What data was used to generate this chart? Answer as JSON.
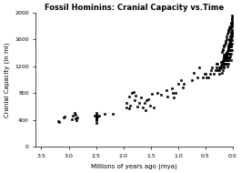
{
  "title": "Fossil Hominins: Cranial Capacity vs.Time",
  "xlabel": "Millions of years ago (mya)",
  "ylabel": "Cranial Capacity (in ml)",
  "xlim": [
    3.6,
    0
  ],
  "ylim": [
    0,
    2000
  ],
  "xticks": [
    3.5,
    3.0,
    2.5,
    2.0,
    1.5,
    1.0,
    0.5,
    0.0
  ],
  "yticks": [
    0,
    400,
    800,
    1200,
    1600,
    2000
  ],
  "bg_color": "#ffffff",
  "marker_color": "black",
  "points": [
    [
      3.18,
      375
    ],
    [
      3.2,
      380
    ],
    [
      3.1,
      430
    ],
    [
      3.08,
      445
    ],
    [
      2.95,
      410
    ],
    [
      2.92,
      460
    ],
    [
      2.9,
      500
    ],
    [
      2.88,
      480
    ],
    [
      2.85,
      435
    ],
    [
      2.87,
      420
    ],
    [
      2.86,
      400
    ],
    [
      2.5,
      450
    ],
    [
      2.5,
      420
    ],
    [
      2.48,
      455
    ],
    [
      2.52,
      460
    ],
    [
      2.5,
      480
    ],
    [
      2.5,
      505
    ],
    [
      2.5,
      390
    ],
    [
      2.5,
      350
    ],
    [
      2.5,
      410
    ],
    [
      2.5,
      430
    ],
    [
      2.45,
      460
    ],
    [
      2.35,
      490
    ],
    [
      2.2,
      490
    ],
    [
      1.95,
      590
    ],
    [
      1.95,
      660
    ],
    [
      1.9,
      750
    ],
    [
      1.9,
      570
    ],
    [
      1.88,
      620
    ],
    [
      1.85,
      800
    ],
    [
      1.82,
      820
    ],
    [
      1.8,
      700
    ],
    [
      1.78,
      760
    ],
    [
      1.75,
      600
    ],
    [
      1.72,
      650
    ],
    [
      1.68,
      740
    ],
    [
      1.65,
      590
    ],
    [
      1.62,
      660
    ],
    [
      1.6,
      550
    ],
    [
      1.58,
      690
    ],
    [
      1.55,
      710
    ],
    [
      1.52,
      610
    ],
    [
      1.48,
      790
    ],
    [
      1.45,
      590
    ],
    [
      1.38,
      800
    ],
    [
      1.32,
      775
    ],
    [
      1.22,
      840
    ],
    [
      1.2,
      750
    ],
    [
      1.12,
      870
    ],
    [
      1.1,
      800
    ],
    [
      1.08,
      730
    ],
    [
      1.05,
      810
    ],
    [
      1.0,
      940
    ],
    [
      0.95,
      990
    ],
    [
      0.92,
      890
    ],
    [
      0.9,
      940
    ],
    [
      0.75,
      990
    ],
    [
      0.72,
      1100
    ],
    [
      0.65,
      1040
    ],
    [
      0.62,
      1190
    ],
    [
      0.55,
      1040
    ],
    [
      0.52,
      1090
    ],
    [
      0.5,
      1090
    ],
    [
      0.48,
      1040
    ],
    [
      0.45,
      1040
    ],
    [
      0.42,
      1090
    ],
    [
      0.4,
      1140
    ],
    [
      0.38,
      1190
    ],
    [
      0.35,
      1090
    ],
    [
      0.32,
      1140
    ],
    [
      0.3,
      1190
    ],
    [
      0.28,
      1240
    ],
    [
      0.25,
      1090
    ],
    [
      0.22,
      1190
    ],
    [
      0.2,
      1240
    ],
    [
      0.18,
      1290
    ],
    [
      0.17,
      1340
    ],
    [
      0.16,
      1190
    ],
    [
      0.15,
      1240
    ],
    [
      0.14,
      1290
    ],
    [
      0.13,
      1240
    ],
    [
      0.12,
      1340
    ],
    [
      0.11,
      1390
    ],
    [
      0.1,
      1200
    ],
    [
      0.09,
      1240
    ],
    [
      0.08,
      1290
    ],
    [
      0.07,
      1340
    ],
    [
      0.3,
      1240
    ],
    [
      0.28,
      1150
    ],
    [
      0.25,
      1190
    ],
    [
      0.2,
      1100
    ],
    [
      0.18,
      1150
    ],
    [
      0.16,
      1200
    ],
    [
      0.14,
      1240
    ],
    [
      0.12,
      1290
    ],
    [
      0.1,
      1340
    ],
    [
      0.08,
      1390
    ],
    [
      0.06,
      1440
    ],
    [
      0.05,
      1350
    ],
    [
      0.04,
      1290
    ],
    [
      0.03,
      1390
    ],
    [
      0.02,
      1440
    ],
    [
      0.04,
      1490
    ],
    [
      0.03,
      1540
    ],
    [
      0.02,
      1590
    ],
    [
      0.01,
      1640
    ],
    [
      0.02,
      1540
    ],
    [
      0.03,
      1440
    ],
    [
      0.04,
      1490
    ],
    [
      0.05,
      1390
    ],
    [
      0.06,
      1340
    ],
    [
      0.07,
      1440
    ],
    [
      0.08,
      1390
    ],
    [
      0.09,
      1290
    ],
    [
      0.1,
      1340
    ],
    [
      0.11,
      1240
    ],
    [
      0.12,
      1390
    ],
    [
      0.13,
      1290
    ],
    [
      0.14,
      1390
    ],
    [
      0.15,
      1240
    ],
    [
      0.16,
      1290
    ],
    [
      0.02,
      1690
    ],
    [
      0.03,
      1640
    ],
    [
      0.04,
      1590
    ],
    [
      0.05,
      1570
    ],
    [
      0.06,
      1490
    ],
    [
      0.07,
      1540
    ],
    [
      0.08,
      1510
    ],
    [
      0.09,
      1470
    ],
    [
      0.1,
      1410
    ],
    [
      0.11,
      1370
    ],
    [
      0.12,
      1350
    ],
    [
      0.13,
      1330
    ],
    [
      0.14,
      1310
    ],
    [
      0.15,
      1350
    ],
    [
      0.16,
      1330
    ],
    [
      0.17,
      1370
    ],
    [
      0.18,
      1270
    ],
    [
      0.19,
      1250
    ],
    [
      0.2,
      1230
    ],
    [
      0.21,
      1270
    ],
    [
      0.22,
      1210
    ],
    [
      0.23,
      1190
    ],
    [
      0.24,
      1170
    ],
    [
      0.25,
      1150
    ],
    [
      0.01,
      1790
    ],
    [
      0.02,
      1740
    ],
    [
      0.03,
      1710
    ],
    [
      0.04,
      1670
    ],
    [
      0.05,
      1650
    ],
    [
      0.06,
      1610
    ],
    [
      0.07,
      1590
    ],
    [
      0.01,
      1840
    ],
    [
      0.02,
      1810
    ],
    [
      0.03,
      1770
    ],
    [
      0.0,
      1850
    ],
    [
      0.01,
      1900
    ],
    [
      0.02,
      1880
    ],
    [
      0.0,
      1940
    ],
    [
      0.01,
      1960
    ],
    [
      0.02,
      1920
    ],
    [
      0.03,
      1850
    ],
    [
      0.04,
      1830
    ],
    [
      0.05,
      1800
    ],
    [
      0.06,
      1780
    ],
    [
      0.07,
      1760
    ],
    [
      0.08,
      1740
    ],
    [
      0.09,
      1720
    ],
    [
      0.1,
      1690
    ],
    [
      0.11,
      1650
    ],
    [
      0.12,
      1610
    ],
    [
      0.13,
      1580
    ],
    [
      0.14,
      1550
    ],
    [
      0.15,
      1530
    ],
    [
      0.16,
      1510
    ],
    [
      0.17,
      1490
    ],
    [
      0.18,
      1460
    ],
    [
      0.19,
      1440
    ],
    [
      0.2,
      1410
    ],
    [
      0.0,
      1720
    ],
    [
      0.01,
      1700
    ],
    [
      0.02,
      1660
    ],
    [
      0.03,
      1630
    ],
    [
      0.04,
      1600
    ],
    [
      0.05,
      1570
    ],
    [
      0.06,
      1540
    ],
    [
      0.07,
      1510
    ],
    [
      0.08,
      1480
    ],
    [
      0.09,
      1450
    ],
    [
      0.1,
      1430
    ],
    [
      0.11,
      1400
    ]
  ]
}
